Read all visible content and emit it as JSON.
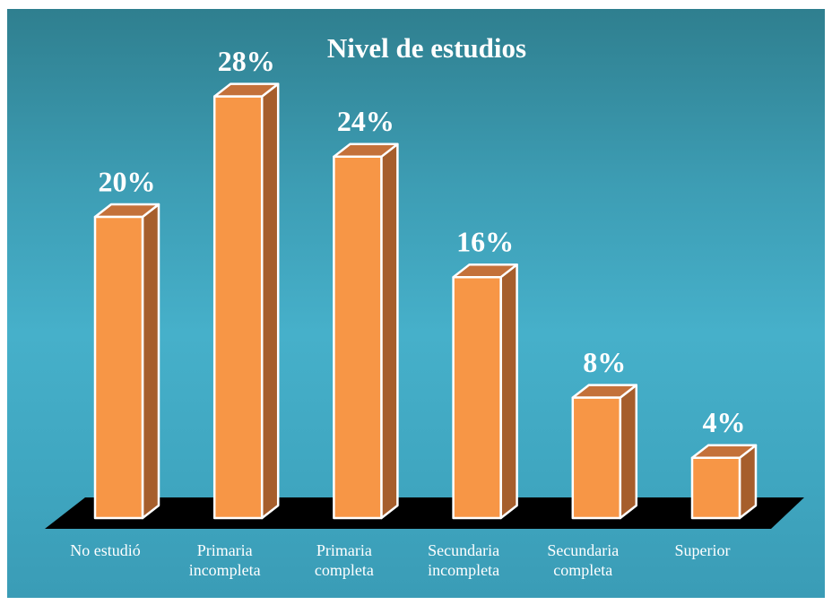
{
  "chart_data": {
    "type": "bar3d",
    "title": "Nivel de estudios",
    "categories": [
      "No estudió",
      "Primaria incompleta",
      "Primaria completa",
      "Secundaria incompleta",
      "Secundaria completa",
      "Superior"
    ],
    "values": [
      20,
      28,
      24,
      16,
      8,
      4
    ],
    "value_labels": [
      "20%",
      "28%",
      "24%",
      "16%",
      "8%",
      "4%"
    ],
    "color": "#f79646"
  }
}
